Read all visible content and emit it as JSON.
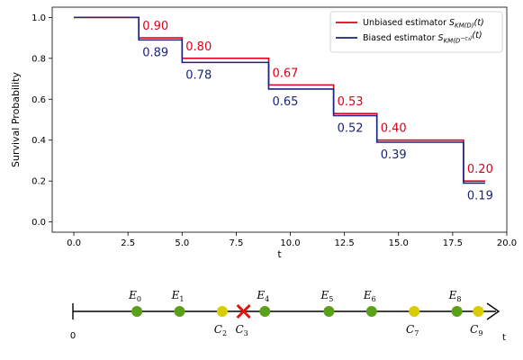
{
  "chart_data": {
    "type": "line",
    "ylabel": "Survival Probability",
    "xlabel": "t",
    "xlim": [
      -1,
      20
    ],
    "ylim": [
      -0.05,
      1.05
    ],
    "xticks": [
      "0.0",
      "2.5",
      "5.0",
      "7.5",
      "10.0",
      "12.5",
      "15.0",
      "17.5",
      "20.0"
    ],
    "yticks": [
      "0.0",
      "0.2",
      "0.4",
      "0.6",
      "0.8",
      "1.0"
    ],
    "legend_position": "top-right",
    "colors": {
      "unbiased": "#e0001b",
      "biased": "#1a237e"
    },
    "series": [
      {
        "name": "Unbiased estimator S_KM(D)(t)",
        "color": "#e0001b",
        "x": [
          0,
          3,
          5,
          9,
          12,
          14,
          18,
          19
        ],
        "y": [
          1.0,
          0.9,
          0.8,
          0.67,
          0.53,
          0.4,
          0.2,
          0.2
        ]
      },
      {
        "name": "Biased estimator S_KM(D-c3)(t)",
        "color": "#1a237e",
        "x": [
          0,
          3,
          5,
          9,
          12,
          14,
          18,
          19
        ],
        "y": [
          1.0,
          0.89,
          0.78,
          0.65,
          0.52,
          0.39,
          0.19,
          0.19
        ]
      }
    ],
    "annotations_unbiased": [
      {
        "x": 3,
        "label": "0.90"
      },
      {
        "x": 5,
        "label": "0.80"
      },
      {
        "x": 9,
        "label": "0.67"
      },
      {
        "x": 12,
        "label": "0.53"
      },
      {
        "x": 14,
        "label": "0.40"
      },
      {
        "x": 18,
        "label": "0.20"
      }
    ],
    "annotations_biased": [
      {
        "x": 3,
        "label": "0.89"
      },
      {
        "x": 5,
        "label": "0.78"
      },
      {
        "x": 9,
        "label": "0.65"
      },
      {
        "x": 12,
        "label": "0.52"
      },
      {
        "x": 14,
        "label": "0.39"
      },
      {
        "x": 18,
        "label": "0.19"
      }
    ]
  },
  "legend": {
    "unbiased_prefix": "Unbiased estimator ",
    "biased_prefix": "Biased estimator "
  },
  "timeline": {
    "start_label": "0",
    "axis_label": "t",
    "colors": {
      "event": "#5ba01b",
      "censored": "#d9cc00",
      "removed": "#e8120c"
    },
    "points": [
      {
        "t": 3,
        "kind": "event",
        "sym": "E",
        "idx": "0",
        "pos": "above"
      },
      {
        "t": 5,
        "kind": "event",
        "sym": "E",
        "idx": "1",
        "pos": "above"
      },
      {
        "t": 7,
        "kind": "censored",
        "sym": "C",
        "idx": "2",
        "pos": "below"
      },
      {
        "t": 8,
        "kind": "removed",
        "sym": "C",
        "idx": "3",
        "pos": "below"
      },
      {
        "t": 9,
        "kind": "event",
        "sym": "E",
        "idx": "4",
        "pos": "above"
      },
      {
        "t": 12,
        "kind": "event",
        "sym": "E",
        "idx": "5",
        "pos": "above"
      },
      {
        "t": 14,
        "kind": "event",
        "sym": "E",
        "idx": "6",
        "pos": "above"
      },
      {
        "t": 16,
        "kind": "censored",
        "sym": "C",
        "idx": "7",
        "pos": "below"
      },
      {
        "t": 18,
        "kind": "event",
        "sym": "E",
        "idx": "8",
        "pos": "above"
      },
      {
        "t": 19,
        "kind": "censored",
        "sym": "C",
        "idx": "9",
        "pos": "below"
      }
    ]
  }
}
